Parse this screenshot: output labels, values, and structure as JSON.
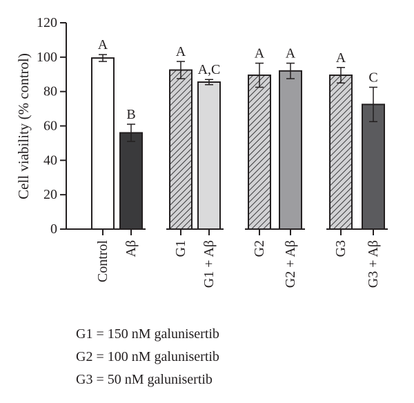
{
  "chart_data": {
    "type": "bar",
    "ylabel": "Cell viability (% control)",
    "xlabel": "",
    "ylim": [
      0,
      120
    ],
    "yticks": [
      0,
      20,
      40,
      60,
      80,
      100,
      120
    ],
    "grid": false,
    "categories": [
      "Control",
      "Aβ",
      "G1",
      "G1 + Aβ",
      "G2",
      "G2 + Aβ",
      "G3",
      "G3 + Aβ"
    ],
    "values": [
      99.5,
      56,
      92.5,
      85.5,
      89.5,
      92,
      89.5,
      72.5
    ],
    "errors": [
      2,
      5,
      5,
      1.5,
      7,
      4.5,
      4.5,
      10
    ],
    "significance_labels": [
      "A",
      "B",
      "A",
      "A,C",
      "A",
      "A",
      "A",
      "C"
    ],
    "bar_fills": [
      {
        "color": "#ffffff",
        "hatch": false
      },
      {
        "color": "#3a3a3c",
        "hatch": false
      },
      {
        "color": "#cfcfd1",
        "hatch": true
      },
      {
        "color": "#dadadb",
        "hatch": false
      },
      {
        "color": "#cfcfd1",
        "hatch": true
      },
      {
        "color": "#9d9da0",
        "hatch": false
      },
      {
        "color": "#cfcfd1",
        "hatch": true
      },
      {
        "color": "#5b5b5e",
        "hatch": false
      }
    ]
  },
  "legend_notes": [
    "G1 = 150 nM galunisertib",
    "G2 = 100 nM galunisertib",
    "G3 = 50 nM galunisertib"
  ]
}
